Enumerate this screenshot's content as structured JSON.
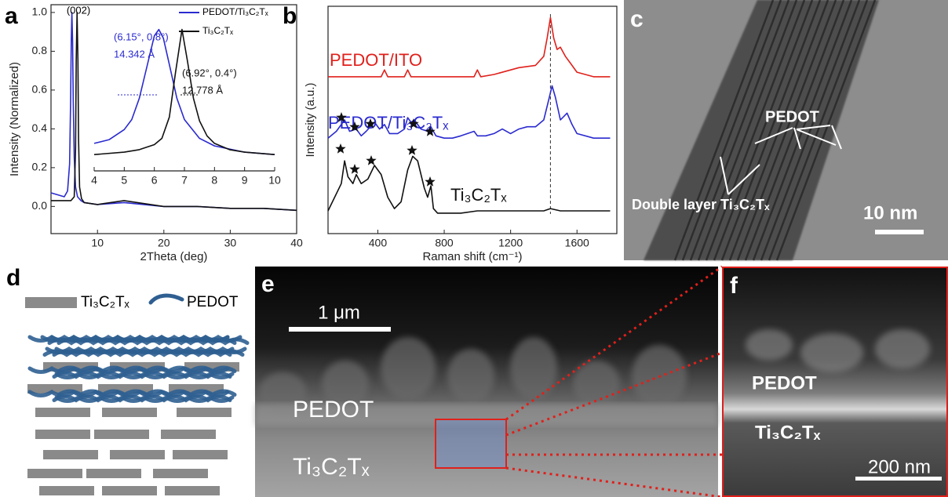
{
  "chart_data": [
    {
      "type": "line",
      "panel_label": "a",
      "xlabel": "2Theta (deg)",
      "ylabel": "Intensity (Normalized)",
      "xlim": [
        3,
        40
      ],
      "ylim": [
        -0.14,
        1.04
      ],
      "xticks": [
        10,
        20,
        30,
        40
      ],
      "yticks": [
        {
          "value": 0,
          "label": "0.0"
        },
        0.2,
        0.4,
        0.6,
        0.8,
        {
          "value": 1,
          "label": "1.0"
        }
      ],
      "legend": "upper right",
      "annotations": [
        {
          "text": "(002)",
          "color": "#000000"
        }
      ],
      "series": [
        {
          "name": "PEDOT/Ti₃C₂Tₓ",
          "color": "#2a2ad0",
          "x": [
            3,
            4,
            5,
            5.5,
            5.8,
            5.95,
            6.05,
            6.15,
            6.25,
            6.35,
            6.5,
            6.7,
            7,
            7.5,
            8,
            10,
            14,
            20,
            25,
            30,
            35,
            40
          ],
          "values": [
            0.07,
            0.06,
            0.05,
            0.08,
            0.22,
            0.55,
            0.85,
            1.0,
            0.85,
            0.55,
            0.25,
            0.1,
            0.05,
            0.03,
            0.02,
            0.01,
            0.02,
            0.0,
            0.0,
            -0.01,
            -0.01,
            -0.02
          ]
        },
        {
          "name": "Ti₃C₂Tₓ",
          "color": "#111111",
          "x": [
            3,
            5,
            6,
            6.5,
            6.7,
            6.8,
            6.92,
            7.05,
            7.15,
            7.3,
            7.6,
            8,
            10,
            14,
            20,
            25,
            30,
            35,
            40
          ],
          "values": [
            0.03,
            0.03,
            0.03,
            0.05,
            0.3,
            0.75,
            1.0,
            0.75,
            0.35,
            0.1,
            0.04,
            0.02,
            0.01,
            0.03,
            0.0,
            0.0,
            -0.01,
            -0.01,
            -0.02
          ]
        }
      ]
    },
    {
      "type": "line",
      "xlim": [
        4,
        10
      ],
      "ylim": [
        -0.13,
        1.06
      ],
      "xticks": [
        4,
        5,
        6,
        7,
        8,
        9,
        10
      ],
      "annotations": [
        {
          "text": "(6.15°, 0.8°)",
          "color": "#2a2ad0"
        },
        {
          "text": "14.342 Å",
          "color": "#2a2ad0"
        },
        {
          "text": "(6.92°, 0.4°)",
          "color": "#111111"
        },
        {
          "text": "12.778 Å",
          "color": "#111111"
        }
      ],
      "series": [
        {
          "name": "PEDOT/Ti₃C₂Tₓ",
          "color": "#2a2ad0",
          "x": [
            4,
            4.5,
            5,
            5.25,
            5.5,
            5.75,
            6,
            6.15,
            6.3,
            6.5,
            6.75,
            7,
            7.5,
            8,
            9,
            10
          ],
          "values": [
            0.09,
            0.12,
            0.2,
            0.28,
            0.45,
            0.7,
            0.95,
            1.0,
            0.93,
            0.72,
            0.45,
            0.28,
            0.13,
            0.07,
            0.02,
            0.0
          ]
        },
        {
          "name": "Ti₃C₂Tₓ",
          "color": "#111111",
          "x": [
            4,
            5,
            5.5,
            6,
            6.25,
            6.5,
            6.7,
            6.92,
            7.1,
            7.3,
            7.5,
            7.75,
            8,
            8.5,
            9,
            10
          ],
          "values": [
            0.0,
            0.02,
            0.04,
            0.08,
            0.13,
            0.3,
            0.65,
            1.0,
            0.75,
            0.45,
            0.27,
            0.15,
            0.09,
            0.04,
            0.02,
            0.0
          ]
        }
      ]
    },
    {
      "type": "line",
      "panel_label": "b",
      "xlabel": "Raman shift (cm⁻¹)",
      "ylabel": "Intensity (a.u.)",
      "xlim": [
        100,
        1840
      ],
      "ylim": [
        0,
        10
      ],
      "xticks": [
        400,
        800,
        1200,
        1600
      ],
      "vline": 1440,
      "series": [
        {
          "name": "PEDOT/ITO",
          "color": "#e0201b",
          "x": [
            100,
            200,
            300,
            420,
            440,
            460,
            560,
            580,
            600,
            700,
            800,
            980,
            1000,
            1020,
            1100,
            1250,
            1350,
            1400,
            1420,
            1440,
            1460,
            1480,
            1500,
            1530,
            1560,
            1600,
            1700,
            1800
          ],
          "values": [
            6.9,
            6.9,
            6.9,
            6.9,
            7.2,
            6.9,
            6.9,
            7.2,
            6.9,
            6.9,
            6.9,
            6.9,
            7.2,
            6.9,
            7.0,
            7.3,
            7.4,
            7.8,
            8.6,
            9.5,
            8.6,
            8.1,
            8.2,
            7.8,
            7.5,
            7.1,
            6.9,
            6.9
          ]
        },
        {
          "name": "PEDOT/Ti₃C₂Tₓ",
          "color": "#2a2ad0",
          "x": [
            100,
            150,
            200,
            230,
            270,
            300,
            330,
            380,
            410,
            440,
            470,
            520,
            560,
            580,
            600,
            620,
            660,
            700,
            720,
            750,
            800,
            850,
            900,
            980,
            1000,
            1050,
            1100,
            1150,
            1200,
            1250,
            1300,
            1350,
            1400,
            1430,
            1450,
            1470,
            1500,
            1540,
            1570,
            1600,
            1700,
            1800
          ],
          "values": [
            4.2,
            4.5,
            5.0,
            4.5,
            4.6,
            4.3,
            4.5,
            4.9,
            4.6,
            4.8,
            4.4,
            4.4,
            4.6,
            5.1,
            4.9,
            5.0,
            4.6,
            4.5,
            4.7,
            4.3,
            4.2,
            4.2,
            4.3,
            4.5,
            4.3,
            4.3,
            4.4,
            4.6,
            4.4,
            4.6,
            4.7,
            4.7,
            5.0,
            5.9,
            6.5,
            6.0,
            5.0,
            5.3,
            4.8,
            4.4,
            4.2,
            4.2
          ]
        },
        {
          "name": "Ti₃C₂Tₓ",
          "color": "#111111",
          "x": [
            100,
            180,
            200,
            220,
            250,
            270,
            300,
            340,
            380,
            420,
            460,
            500,
            540,
            580,
            610,
            640,
            680,
            700,
            720,
            735,
            760,
            800,
            900,
            1000,
            1200,
            1400,
            1440,
            1500,
            1600,
            1700,
            1800
          ],
          "values": [
            1.0,
            2.2,
            3.2,
            2.5,
            2.2,
            2.6,
            2.2,
            2.4,
            3.0,
            2.6,
            1.6,
            1.1,
            1.4,
            2.8,
            3.4,
            3.2,
            2.0,
            1.6,
            2.1,
            1.1,
            0.9,
            0.9,
            0.9,
            1.0,
            1.0,
            1.0,
            1.1,
            1.0,
            1.0,
            1.0,
            1.0
          ]
        }
      ]
    }
  ],
  "panels": {
    "c": {
      "label": "c",
      "texts": [
        "PEDOT",
        "Double layer Ti₃C₂Tₓ"
      ],
      "scale_bar": "10 nm"
    },
    "d": {
      "label": "d",
      "legend": [
        "Ti₃C₂Tₓ",
        "PEDOT"
      ]
    },
    "e": {
      "label": "e",
      "scale_bar": "1 μm",
      "layers": [
        "PEDOT",
        "Ti₃C₂Tₓ"
      ]
    },
    "f": {
      "label": "f",
      "layers": [
        "PEDOT",
        "Ti₃C₂Tₓ"
      ],
      "scale_bar": "200 nm"
    }
  }
}
